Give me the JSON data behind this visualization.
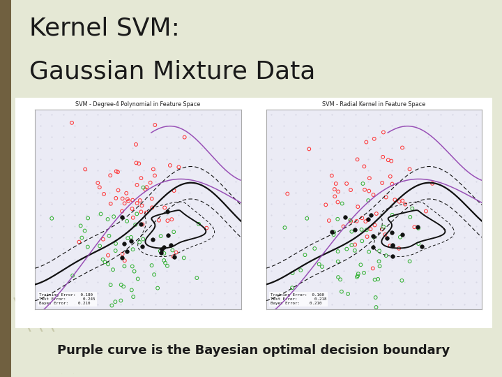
{
  "title_line1": "Kernel SVM:",
  "title_line2": "Gaussian Mixture Data",
  "subtitle": "Purple curve is the Bayesian optimal decision boundary",
  "bg_color": "#e5e8d5",
  "title_color": "#1a1a1a",
  "subtitle_color": "#1a1a1a",
  "title_fontsize": 26,
  "subtitle_fontsize": 13,
  "panel1_title": "SVM - Degree-4 Polynomial in Feature Space",
  "panel2_title": "SVM - Radial Kernel in Feature Space",
  "panel1_stats": "Training Error:  0.180\nTest Error:       0.245\nBayes Error:    0.210",
  "panel2_stats": "Training Error:  0.160\nTest Error:       0.218\nBayes Error:    0.210",
  "left_bar_color": "#706040",
  "deco_line_color": "#c0c0a0",
  "panel_bg": "#ffffff",
  "inner_bg": "#ebebf5",
  "grid_dot_color": "#c8c8d8",
  "red_color": "#ff3030",
  "green_color": "#30b030",
  "black_sv": "#111111",
  "boundary_black": "#111111",
  "purple_color": "#9040b0"
}
